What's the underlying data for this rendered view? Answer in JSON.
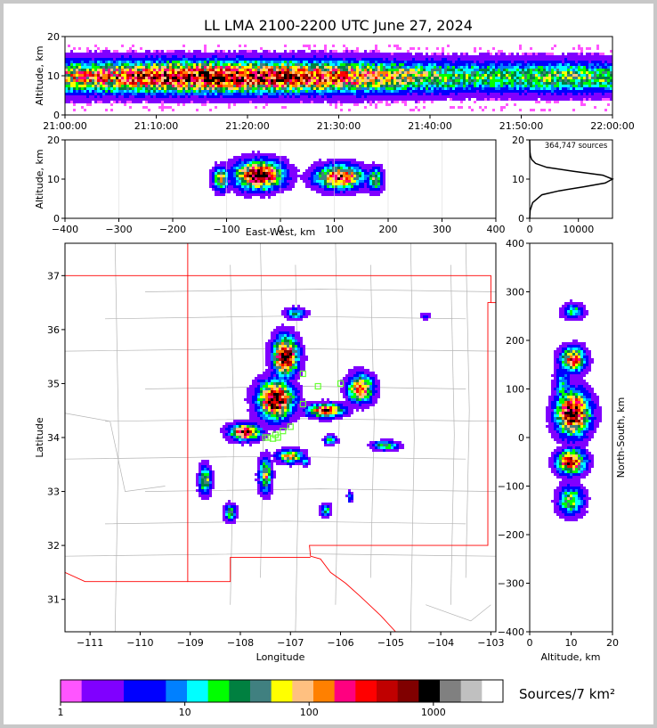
{
  "title": "LL LMA 2100-2200 UTC June 27, 2024",
  "chart_data": [
    {
      "type": "heatmap",
      "panel": "altitude-time",
      "ylabel": "Altitude, km",
      "ylim": [
        0,
        20
      ],
      "yticks": [
        "0",
        "10",
        "20"
      ],
      "xticks": [
        "21:00:00",
        "21:10:00",
        "21:20:00",
        "21:30:00",
        "21:40:00",
        "21:50:00",
        "22:00:00"
      ],
      "density_band": {
        "center_km": 10,
        "halfwidth_km": 2.5,
        "peak_intensity": [
          0.7,
          0.8,
          0.9,
          0.95,
          0.9,
          0.85,
          0.75,
          0.6,
          0.5,
          0.5,
          0.55,
          0.5
        ]
      }
    },
    {
      "type": "heatmap",
      "panel": "altitude-eastwest",
      "xlabel": "East-West, km",
      "ylabel": "Altitude, km",
      "xlim": [
        -400,
        400
      ],
      "ylim": [
        0,
        20
      ],
      "xticks": [
        "−400",
        "−300",
        "−200",
        "−100",
        "0",
        "100",
        "200",
        "300",
        "400"
      ],
      "yticks": [
        "0",
        "10",
        "20"
      ],
      "clusters": [
        {
          "x_km": -40,
          "z_km": 11,
          "sx_km": 45,
          "sz_km": 3.5,
          "intensity": 1.0
        },
        {
          "x_km": 110,
          "z_km": 10.5,
          "sx_km": 45,
          "sz_km": 3,
          "intensity": 0.85
        },
        {
          "x_km": -110,
          "z_km": 10,
          "sx_km": 15,
          "sz_km": 3,
          "intensity": 0.6
        },
        {
          "x_km": 175,
          "z_km": 10,
          "sx_km": 15,
          "sz_km": 3,
          "intensity": 0.55
        }
      ]
    },
    {
      "type": "line",
      "panel": "altitude-histogram",
      "annotation": "364,747 sources",
      "xlim": [
        0,
        17000
      ],
      "ylim": [
        0,
        20
      ],
      "xticks": [
        "0",
        "10000"
      ],
      "yticks": [
        "0",
        "10",
        "20"
      ],
      "points": [
        [
          0,
          0
        ],
        [
          100,
          2
        ],
        [
          600,
          4
        ],
        [
          2500,
          6
        ],
        [
          6000,
          7
        ],
        [
          11000,
          8
        ],
        [
          15500,
          9
        ],
        [
          17000,
          10
        ],
        [
          15000,
          11
        ],
        [
          9000,
          12
        ],
        [
          3500,
          13
        ],
        [
          1200,
          14
        ],
        [
          400,
          15
        ],
        [
          150,
          16
        ],
        [
          60,
          17
        ],
        [
          20,
          19
        ],
        [
          0,
          20
        ]
      ]
    },
    {
      "type": "scatter",
      "panel": "plan-view-map",
      "xlabel": "Longitude",
      "ylabel": "Latitude",
      "xlim": [
        -111.5,
        -102.9
      ],
      "ylim": [
        30.4,
        37.6
      ],
      "xticks": [
        "−111",
        "−110",
        "−109",
        "−108",
        "−107",
        "−106",
        "−105",
        "−104",
        "−103"
      ],
      "yticks": [
        "31",
        "32",
        "33",
        "34",
        "35",
        "36",
        "37"
      ],
      "clusters": [
        {
          "lon": -107.1,
          "lat": 35.5,
          "slon": 0.25,
          "slat": 0.35,
          "intensity": 1.0
        },
        {
          "lon": -107.3,
          "lat": 34.7,
          "slon": 0.35,
          "slat": 0.35,
          "intensity": 1.0
        },
        {
          "lon": -107.9,
          "lat": 34.1,
          "slon": 0.3,
          "slat": 0.15,
          "intensity": 0.9
        },
        {
          "lon": -106.3,
          "lat": 34.5,
          "slon": 0.35,
          "slat": 0.12,
          "intensity": 0.9
        },
        {
          "lon": -105.6,
          "lat": 34.9,
          "slon": 0.25,
          "slat": 0.25,
          "intensity": 0.8
        },
        {
          "lon": -107.0,
          "lat": 33.65,
          "slon": 0.25,
          "slat": 0.12,
          "intensity": 0.7
        },
        {
          "lon": -107.5,
          "lat": 33.3,
          "slon": 0.12,
          "slat": 0.3,
          "intensity": 0.65
        },
        {
          "lon": -108.7,
          "lat": 33.2,
          "slon": 0.12,
          "slat": 0.25,
          "intensity": 0.6
        },
        {
          "lon": -108.2,
          "lat": 32.6,
          "slon": 0.12,
          "slat": 0.15,
          "intensity": 0.5
        },
        {
          "lon": -105.1,
          "lat": 33.85,
          "slon": 0.25,
          "slat": 0.08,
          "intensity": 0.55
        },
        {
          "lon": -106.2,
          "lat": 33.95,
          "slon": 0.12,
          "slat": 0.08,
          "intensity": 0.5
        },
        {
          "lon": -106.9,
          "lat": 36.3,
          "slon": 0.2,
          "slat": 0.1,
          "intensity": 0.45
        },
        {
          "lon": -106.3,
          "lat": 32.65,
          "slon": 0.1,
          "slat": 0.12,
          "intensity": 0.45
        },
        {
          "lon": -106.7,
          "lat": 33.55,
          "slon": 0.08,
          "slat": 0.08,
          "intensity": 0.4
        },
        {
          "lon": -105.8,
          "lat": 32.9,
          "slon": 0.06,
          "slat": 0.1,
          "intensity": 0.35
        },
        {
          "lon": -104.3,
          "lat": 36.25,
          "slon": 0.1,
          "slat": 0.06,
          "intensity": 0.25
        }
      ],
      "stations": [
        [
          -107.3,
          34.05
        ],
        [
          -107.45,
          34.0
        ],
        [
          -107.15,
          34.12
        ],
        [
          -107.35,
          33.98
        ],
        [
          -107.0,
          34.2
        ],
        [
          -106.75,
          34.62
        ],
        [
          -106.45,
          34.95
        ],
        [
          -106.0,
          35.0
        ],
        [
          -106.75,
          35.18
        ],
        [
          -107.5,
          34.0
        ],
        [
          -107.25,
          34.0
        ]
      ]
    },
    {
      "type": "heatmap",
      "panel": "north-south-altitude",
      "xlabel": "Altitude, km",
      "ylabel": "North-South, km",
      "xlim": [
        0,
        20
      ],
      "ylim": [
        -400,
        400
      ],
      "xticks": [
        "0",
        "10",
        "20"
      ],
      "yticks": [
        "−400",
        "−300",
        "−200",
        "−100",
        "0",
        "100",
        "200",
        "300",
        "400"
      ],
      "clusters": [
        {
          "z_km": 10.5,
          "ns_km": 160,
          "sz_km": 3,
          "sns_km": 25,
          "intensity": 0.8
        },
        {
          "z_km": 10.5,
          "ns_km": 50,
          "sz_km": 4,
          "sns_km": 45,
          "intensity": 1.0
        },
        {
          "z_km": 10,
          "ns_km": -50,
          "sz_km": 3.5,
          "sns_km": 25,
          "intensity": 0.85
        },
        {
          "z_km": 10,
          "ns_km": -130,
          "sz_km": 3,
          "sns_km": 30,
          "intensity": 0.55
        },
        {
          "z_km": 10.5,
          "ns_km": 260,
          "sz_km": 2.5,
          "sns_km": 15,
          "intensity": 0.45
        },
        {
          "z_km": 8,
          "ns_km": 100,
          "sz_km": 2,
          "sns_km": 50,
          "intensity": 0.4
        }
      ]
    }
  ],
  "colorbar": {
    "label": "Sources/7 km²",
    "ticks": [
      "1",
      "10",
      "100",
      "1000"
    ],
    "colors": [
      "#ff55ff",
      "#8000ff",
      "#8000ff",
      "#0000ff",
      "#0000ff",
      "#0080ff",
      "#00ffff",
      "#00ff00",
      "#008040",
      "#408080",
      "#ffff00",
      "#ffc080",
      "#ff8000",
      "#ff0080",
      "#ff0000",
      "#c00000",
      "#800000",
      "#000000",
      "#808080",
      "#c0c0c0",
      "#ffffff"
    ]
  },
  "colors": {
    "border": "#ff0000",
    "county": "#b4b4b4",
    "station": "#66ff33"
  }
}
